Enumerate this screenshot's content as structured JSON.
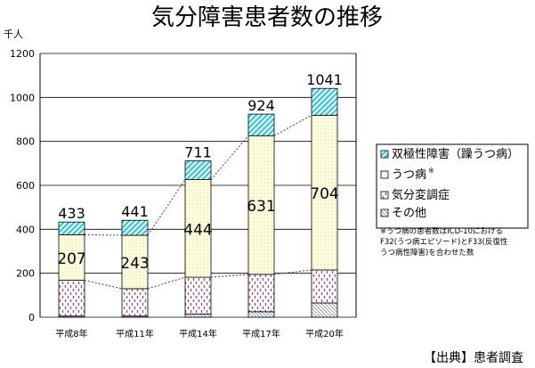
{
  "chart_data": {
    "type": "bar",
    "stacked": true,
    "title": "気分障害患者数の推移",
    "ylabel": "千人",
    "ylim": [
      0,
      1200
    ],
    "yticks": [
      0,
      200,
      400,
      600,
      800,
      1000,
      1200
    ],
    "grid": true,
    "legend_position": "right",
    "categories": [
      "平成8年",
      "平成11年",
      "平成14年",
      "平成17年",
      "平成20年"
    ],
    "series": [
      {
        "name": "その他",
        "values": [
          5,
          5,
          15,
          25,
          65
        ],
        "color": "#ffffff",
        "pattern": "hatch"
      },
      {
        "name": "気分変調症",
        "values": [
          163,
          125,
          167,
          170,
          150
        ],
        "color": "#b06090",
        "pattern": "dash"
      },
      {
        "name": "うつ病",
        "values": [
          207,
          243,
          444,
          631,
          704
        ],
        "color": "#ffffe0",
        "pattern": "dots"
      },
      {
        "name": "双極性障害（躁うつ病）",
        "values": [
          58,
          68,
          85,
          98,
          122
        ],
        "color": "#33c8e0",
        "pattern": "stripes"
      }
    ],
    "totals": [
      433,
      441,
      711,
      924,
      1041
    ],
    "utsu_labels": [
      "207",
      "243",
      "444",
      "631",
      "704"
    ],
    "total_labels": [
      "433",
      "441",
      "711",
      "924",
      "1041"
    ],
    "legend_entries": [
      "双極性障害（躁うつ病）",
      "うつ病",
      "気分変調症",
      "その他"
    ],
    "legend_marks": [
      "",
      "※",
      "",
      ""
    ],
    "footnote": [
      "※うつ病の患者数はICD-10における",
      "F32(うつ病エピソード)とF33(反復性",
      "うつ病性障害)を合わせた数"
    ],
    "source": "【出典】患者調査"
  }
}
